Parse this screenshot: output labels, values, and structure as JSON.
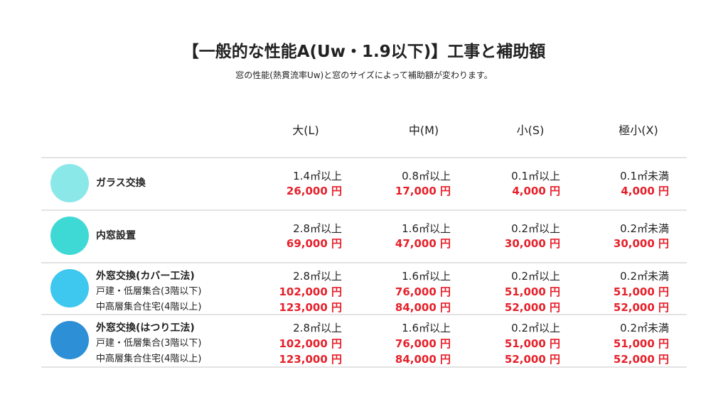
{
  "header": {
    "title": "【一般的な性能A(Uw・1.9以下)】工事と補助額",
    "subtitle": "窓の性能(熱貫流率Uw)と窓のサイズによって補助額が変わります。"
  },
  "table": {
    "columns": [
      "大(L)",
      "中(M)",
      "小(S)",
      "極小(X)"
    ],
    "rows": [
      {
        "label": "ガラス交換",
        "cells": [
          {
            "size": "1.4㎡以上",
            "prices": [
              "26,000 円"
            ]
          },
          {
            "size": "0.8㎡以上",
            "prices": [
              "17,000 円"
            ]
          },
          {
            "size": "0.1㎡以上",
            "prices": [
              "4,000 円"
            ]
          },
          {
            "size": "0.1㎡未満",
            "prices": [
              "4,000 円"
            ]
          }
        ]
      },
      {
        "label": "内窓設置",
        "cells": [
          {
            "size": "2.8㎡以上",
            "prices": [
              "69,000 円"
            ]
          },
          {
            "size": "1.6㎡以上",
            "prices": [
              "47,000 円"
            ]
          },
          {
            "size": "0.2㎡以上",
            "prices": [
              "30,000 円"
            ]
          },
          {
            "size": "0.2㎡未満",
            "prices": [
              "30,000 円"
            ]
          }
        ]
      },
      {
        "label": "外窓交換(カバー工法)",
        "sublabels": [
          "戸建・低層集合(3階以下)",
          "中高層集合住宅(4階以上)"
        ],
        "cells": [
          {
            "size": "2.8㎡以上",
            "prices": [
              "102,000 円",
              "123,000 円"
            ]
          },
          {
            "size": "1.6㎡以上",
            "prices": [
              "76,000 円",
              "84,000 円"
            ]
          },
          {
            "size": "0.2㎡以上",
            "prices": [
              "51,000 円",
              "52,000 円"
            ]
          },
          {
            "size": "0.2㎡未満",
            "prices": [
              "51,000 円",
              "52,000 円"
            ]
          }
        ]
      },
      {
        "label": "外窓交換(はつり工法)",
        "sublabels": [
          "戸建・低層集合(3階以下)",
          "中高層集合住宅(4階以上)"
        ],
        "cells": [
          {
            "size": "2.8㎡以上",
            "prices": [
              "102,000 円",
              "123,000 円"
            ]
          },
          {
            "size": "1.6㎡以上",
            "prices": [
              "76,000 円",
              "84,000 円"
            ]
          },
          {
            "size": "0.2㎡以上",
            "prices": [
              "51,000 円",
              "52,000 円"
            ]
          },
          {
            "size": "0.2㎡未満",
            "prices": [
              "51,000 円",
              "52,000 円"
            ]
          }
        ]
      }
    ]
  }
}
